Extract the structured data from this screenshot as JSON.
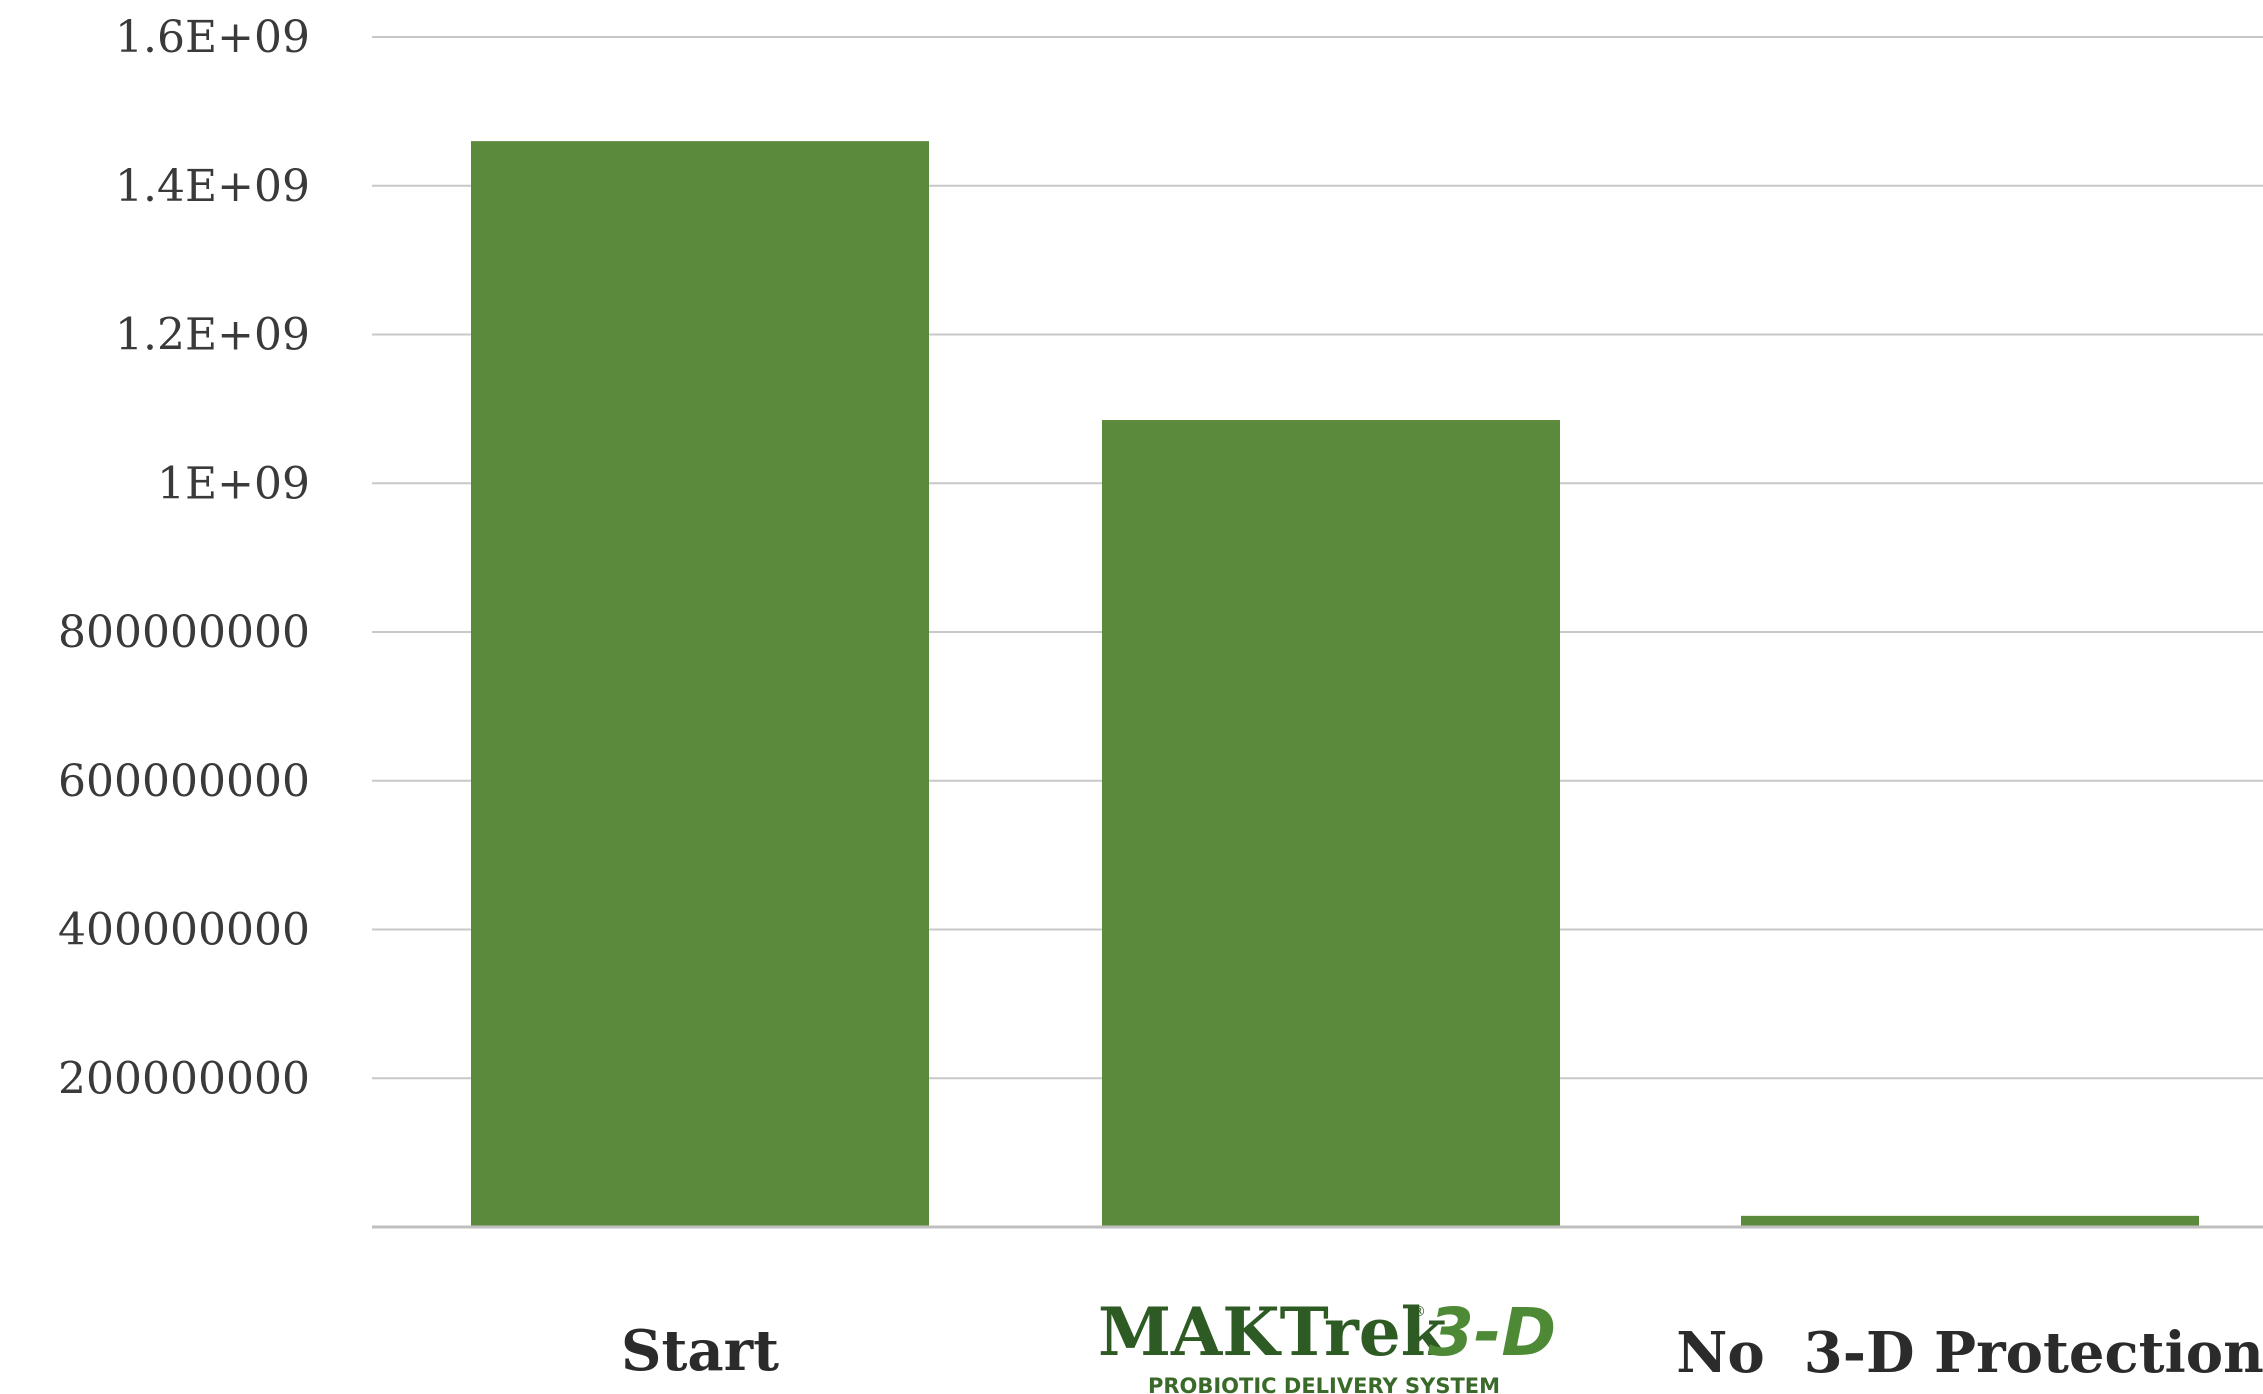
{
  "chart_data": {
    "type": "bar",
    "categories": [
      "Start",
      "MAKTrek® 3-D PROBIOTIC DELIVERY SYSTEM",
      "No  3-D Protection"
    ],
    "values": [
      1460000000,
      1085000000,
      15000000
    ],
    "yticks": [
      0,
      200000000,
      400000000,
      600000000,
      800000000,
      1000000000,
      1200000000,
      1400000000,
      1600000000
    ],
    "ytick_labels": [
      "",
      "200000000",
      "400000000",
      "600000000",
      "800000000",
      "1E+09",
      "1.2E+09",
      "1.4E+09",
      "1.6E+09"
    ],
    "ylim": [
      0,
      1600000000
    ],
    "grid": true,
    "legend": "none",
    "title": "",
    "xlabel": "",
    "ylabel": "",
    "colors": {
      "bar": "#5c8a3c",
      "grid": "#c8c8c8",
      "axis": "#bfbfbf"
    }
  },
  "logo": {
    "brand": "MAKTrek",
    "registered": "®",
    "mark": "3-D",
    "tagline": "PROBIOTIC DELIVERY SYSTEM"
  }
}
